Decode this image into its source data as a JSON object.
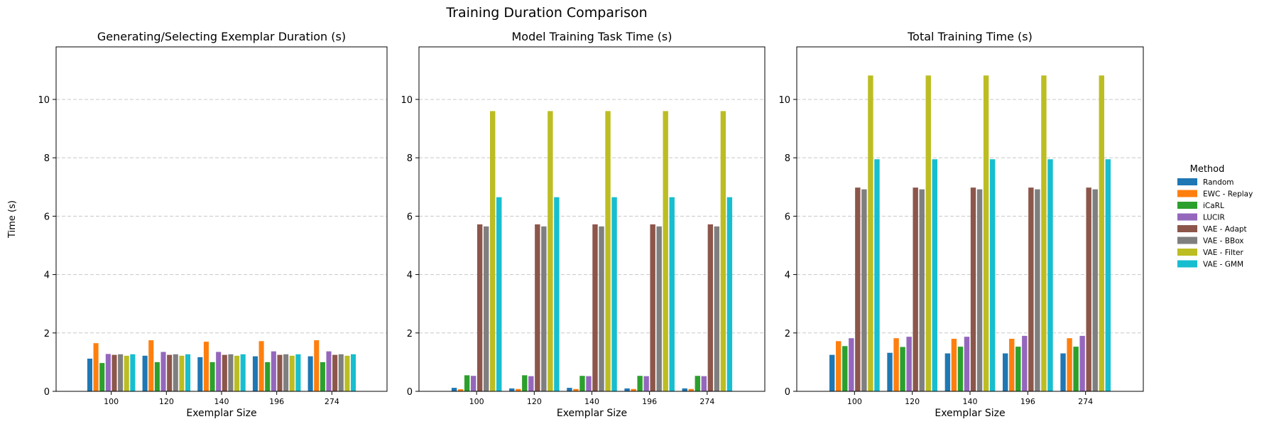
{
  "figure_title": "Training Duration Comparison",
  "legend": {
    "title": "Method",
    "placement": "right",
    "entries": [
      "Random",
      "EWC - Replay",
      "iCaRL",
      "LUCIR",
      "VAE - Adapt",
      "VAE - BBox",
      "VAE - Filter",
      "VAE - GMM"
    ]
  },
  "colors": [
    "#1f77b4",
    "#ff7f0e",
    "#2ca02c",
    "#9467bd",
    "#8c564b",
    "#7f7f7f",
    "#bcbd22",
    "#17becf"
  ],
  "chart_data": [
    {
      "type": "bar",
      "title": "Generating/Selecting Exemplar Duration (s)",
      "xlabel": "Exemplar Size",
      "ylabel": "Time (s)",
      "ylim": [
        0,
        11.8
      ],
      "yticks": [
        0,
        2,
        4,
        6,
        8,
        10
      ],
      "grid": "y-dashed",
      "categories": [
        "100",
        "120",
        "140",
        "196",
        "274"
      ],
      "series": [
        {
          "name": "Random",
          "values": [
            1.12,
            1.22,
            1.17,
            1.2,
            1.2
          ]
        },
        {
          "name": "EWC - Replay",
          "values": [
            1.65,
            1.75,
            1.7,
            1.72,
            1.75
          ]
        },
        {
          "name": "iCaRL",
          "values": [
            0.97,
            1.0,
            1.0,
            1.0,
            1.0
          ]
        },
        {
          "name": "LUCIR",
          "values": [
            1.28,
            1.35,
            1.35,
            1.37,
            1.37
          ]
        },
        {
          "name": "VAE - Adapt",
          "values": [
            1.25,
            1.25,
            1.25,
            1.25,
            1.25
          ]
        },
        {
          "name": "VAE - BBox",
          "values": [
            1.27,
            1.27,
            1.27,
            1.27,
            1.27
          ]
        },
        {
          "name": "VAE - Filter",
          "values": [
            1.22,
            1.22,
            1.22,
            1.22,
            1.22
          ]
        },
        {
          "name": "VAE - GMM",
          "values": [
            1.27,
            1.27,
            1.27,
            1.27,
            1.27
          ]
        }
      ]
    },
    {
      "type": "bar",
      "title": "Model Training Task Time (s)",
      "xlabel": "Exemplar Size",
      "ylabel": "",
      "ylim": [
        0,
        11.8
      ],
      "yticks": [
        0,
        2,
        4,
        6,
        8,
        10
      ],
      "grid": "y-dashed",
      "categories": [
        "100",
        "120",
        "140",
        "196",
        "274"
      ],
      "series": [
        {
          "name": "Random",
          "values": [
            0.12,
            0.1,
            0.12,
            0.1,
            0.1
          ]
        },
        {
          "name": "EWC - Replay",
          "values": [
            0.07,
            0.08,
            0.08,
            0.08,
            0.08
          ]
        },
        {
          "name": "iCaRL",
          "values": [
            0.55,
            0.55,
            0.53,
            0.53,
            0.53
          ]
        },
        {
          "name": "LUCIR",
          "values": [
            0.53,
            0.52,
            0.52,
            0.52,
            0.52
          ]
        },
        {
          "name": "VAE - Adapt",
          "values": [
            5.72,
            5.72,
            5.72,
            5.72,
            5.72
          ]
        },
        {
          "name": "VAE - BBox",
          "values": [
            5.65,
            5.65,
            5.65,
            5.65,
            5.65
          ]
        },
        {
          "name": "VAE - Filter",
          "values": [
            9.6,
            9.6,
            9.6,
            9.6,
            9.6
          ]
        },
        {
          "name": "VAE - GMM",
          "values": [
            6.65,
            6.65,
            6.65,
            6.65,
            6.65
          ]
        }
      ]
    },
    {
      "type": "bar",
      "title": "Total Training Time (s)",
      "xlabel": "Exemplar Size",
      "ylabel": "",
      "ylim": [
        0,
        11.8
      ],
      "yticks": [
        0,
        2,
        4,
        6,
        8,
        10
      ],
      "grid": "y-dashed",
      "categories": [
        "100",
        "120",
        "140",
        "196",
        "274"
      ],
      "series": [
        {
          "name": "Random",
          "values": [
            1.25,
            1.32,
            1.3,
            1.3,
            1.3
          ]
        },
        {
          "name": "EWC - Replay",
          "values": [
            1.72,
            1.82,
            1.8,
            1.8,
            1.82
          ]
        },
        {
          "name": "iCaRL",
          "values": [
            1.55,
            1.52,
            1.53,
            1.53,
            1.53
          ]
        },
        {
          "name": "LUCIR",
          "values": [
            1.82,
            1.87,
            1.87,
            1.9,
            1.9
          ]
        },
        {
          "name": "VAE - Adapt",
          "values": [
            6.98,
            6.98,
            6.98,
            6.98,
            6.98
          ]
        },
        {
          "name": "VAE - BBox",
          "values": [
            6.92,
            6.92,
            6.92,
            6.92,
            6.92
          ]
        },
        {
          "name": "VAE - Filter",
          "values": [
            10.82,
            10.82,
            10.82,
            10.82,
            10.82
          ]
        },
        {
          "name": "VAE - GMM",
          "values": [
            7.95,
            7.95,
            7.95,
            7.95,
            7.95
          ]
        }
      ]
    }
  ]
}
